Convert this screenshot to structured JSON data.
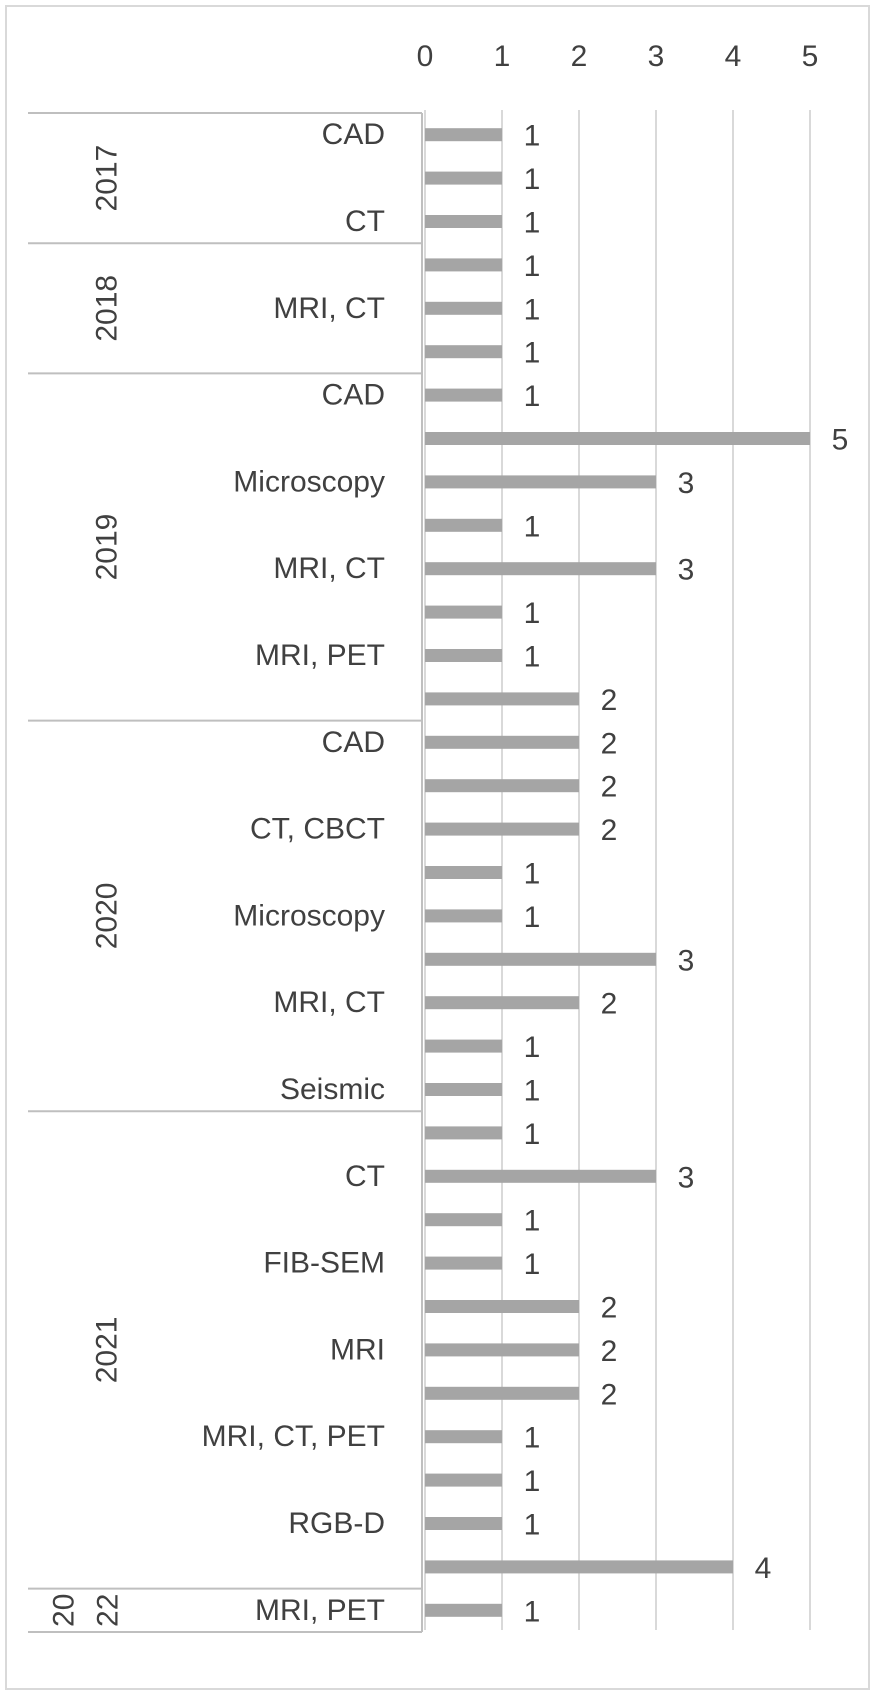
{
  "chart_data": {
    "type": "bar",
    "orientation": "horizontal",
    "x_axis_position": "top",
    "grid": true,
    "xlim": [
      0,
      5
    ],
    "x_ticks": [
      "0",
      "1",
      "2",
      "3",
      "4",
      "5"
    ],
    "bar_color": "#a5a5a5",
    "groups": [
      {
        "year": "2017",
        "start": 0,
        "end": 3
      },
      {
        "year": "2018",
        "start": 3,
        "end": 6
      },
      {
        "year": "2019",
        "start": 6,
        "end": 14
      },
      {
        "year": "2020",
        "start": 14,
        "end": 23
      },
      {
        "year": "2021",
        "start": 23,
        "end": 34
      },
      {
        "year": "2022",
        "start": 34,
        "end": 35,
        "year_parts": [
          "20",
          "22"
        ]
      }
    ],
    "categories": [
      "CAD",
      "",
      "CT",
      "",
      "MRI, CT",
      "",
      "CAD",
      "",
      "Microscopy",
      "",
      "MRI, CT",
      "",
      "MRI, PET",
      "",
      "CAD",
      "",
      "CT, CBCT",
      "",
      "Microscopy",
      "",
      "MRI, CT",
      "",
      "Seismic",
      "",
      "CT",
      "",
      "FIB-SEM",
      "",
      "MRI",
      "",
      "MRI, CT, PET",
      "",
      "RGB-D",
      "",
      "MRI,  PET"
    ],
    "values": [
      1,
      1,
      1,
      1,
      1,
      1,
      1,
      5,
      3,
      1,
      3,
      1,
      1,
      2,
      2,
      2,
      2,
      1,
      1,
      3,
      2,
      1,
      1,
      1,
      3,
      1,
      1,
      2,
      2,
      2,
      1,
      1,
      1,
      4,
      1
    ]
  }
}
